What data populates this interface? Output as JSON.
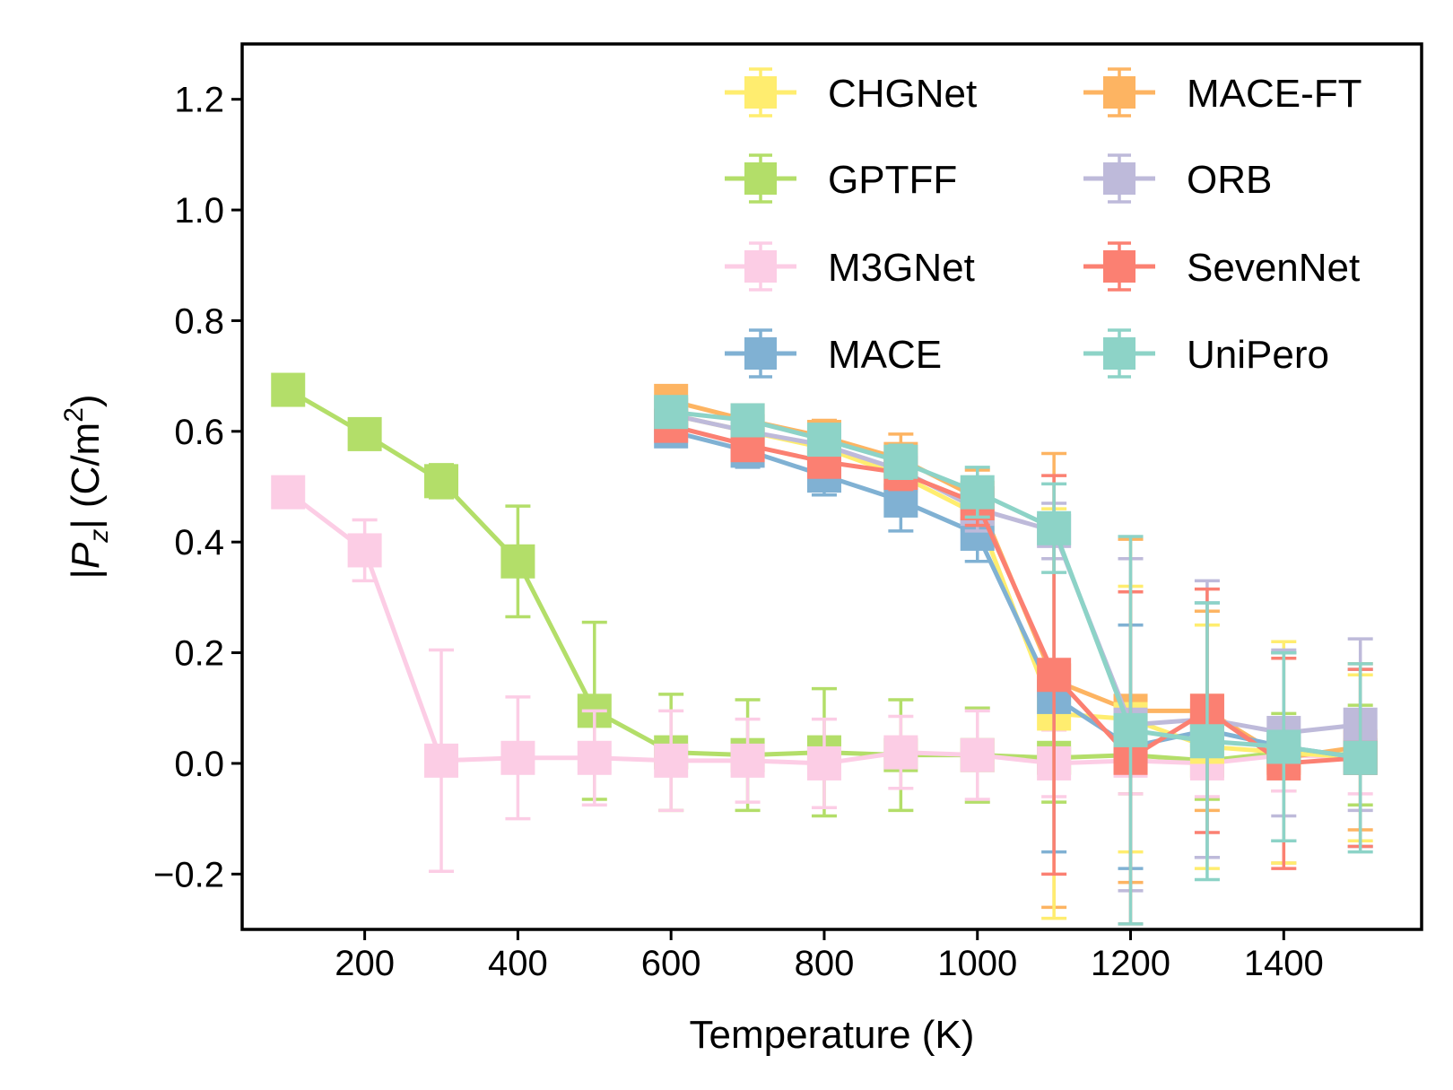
{
  "chart_data": {
    "type": "line",
    "title": "",
    "xlabel": "Temperature (K)",
    "ylabel": {
      "prefix": "|",
      "var": "P",
      "sub": "z",
      "mid": "| (C/m",
      "sup": "2",
      "suffix": ")"
    },
    "xlim": [
      40,
      1580
    ],
    "ylim": [
      -0.3,
      1.3
    ],
    "xticks": [
      200,
      400,
      600,
      800,
      1000,
      1200,
      1400
    ],
    "xtick_labels": [
      "200",
      "400",
      "600",
      "800",
      "1000",
      "1200",
      "1400"
    ],
    "yticks": [
      -0.2,
      0.0,
      0.2,
      0.4,
      0.6,
      0.8,
      1.0,
      1.2
    ],
    "ytick_labels": [
      "−0.2",
      "0.0",
      "0.2",
      "0.4",
      "0.6",
      "0.8",
      "1.0",
      "1.2"
    ],
    "legend": {
      "position": "top-right",
      "columns": 2
    },
    "series": [
      {
        "name": "CHGNet",
        "color": "#FFED6F",
        "x": [
          600,
          700,
          800,
          900,
          1000,
          1100,
          1200,
          1300,
          1400,
          1500
        ],
        "y": [
          0.63,
          0.6,
          0.57,
          0.52,
          0.45,
          0.09,
          0.08,
          0.03,
          0.02,
          0.01
        ],
        "err": [
          0.02,
          0.02,
          0.02,
          0.03,
          0.04,
          0.37,
          0.24,
          0.22,
          0.2,
          0.15
        ]
      },
      {
        "name": "GPTFF",
        "color": "#B3DE69",
        "x": [
          100,
          200,
          300,
          400,
          500,
          600,
          700,
          800,
          900,
          1000,
          1100,
          1200,
          1300,
          1400,
          1500
        ],
        "y": [
          0.675,
          0.595,
          0.51,
          0.365,
          0.095,
          0.02,
          0.015,
          0.02,
          0.015,
          0.015,
          0.01,
          0.015,
          0.005,
          0.02,
          0.015
        ],
        "err": [
          0.01,
          0.015,
          0.03,
          0.1,
          0.16,
          0.105,
          0.1,
          0.115,
          0.1,
          0.085,
          0.08,
          0.07,
          0.07,
          0.07,
          0.09
        ]
      },
      {
        "name": "M3GNet",
        "color": "#FCCDE5",
        "x": [
          100,
          200,
          300,
          400,
          500,
          600,
          700,
          800,
          900,
          1000,
          1100,
          1200,
          1300,
          1400,
          1500
        ],
        "y": [
          0.49,
          0.385,
          0.005,
          0.01,
          0.01,
          0.005,
          0.005,
          0.0,
          0.02,
          0.015,
          0.0,
          0.005,
          0.0,
          0.015,
          0.01
        ],
        "err": [
          0.015,
          0.055,
          0.2,
          0.11,
          0.085,
          0.09,
          0.075,
          0.08,
          0.065,
          0.08,
          0.06,
          0.06,
          0.06,
          0.065,
          0.065
        ]
      },
      {
        "name": "MACE",
        "color": "#80B1D3",
        "x": [
          600,
          700,
          800,
          900,
          1000,
          1100,
          1200,
          1300,
          1400,
          1500
        ],
        "y": [
          0.6,
          0.565,
          0.52,
          0.475,
          0.415,
          0.12,
          0.03,
          0.06,
          0.03,
          0.01
        ],
        "err": [
          0.015,
          0.03,
          0.035,
          0.055,
          0.05,
          0.28,
          0.22,
          0.23,
          0.17,
          0.16
        ]
      },
      {
        "name": "MACE-FT",
        "color": "#FDB462",
        "x": [
          600,
          700,
          800,
          900,
          1000,
          1100,
          1200,
          1300,
          1400,
          1500
        ],
        "y": [
          0.655,
          0.62,
          0.59,
          0.55,
          0.48,
          0.15,
          0.095,
          0.095,
          0.01,
          0.03
        ],
        "err": [
          0.025,
          0.02,
          0.03,
          0.045,
          0.05,
          0.41,
          0.31,
          0.18,
          0.19,
          0.15
        ]
      },
      {
        "name": "ORB",
        "color": "#BEBADA",
        "x": [
          600,
          700,
          800,
          900,
          1000,
          1100,
          1200,
          1300,
          1400,
          1500
        ],
        "y": [
          0.63,
          0.6,
          0.575,
          0.53,
          0.46,
          0.42,
          0.07,
          0.08,
          0.055,
          0.07
        ],
        "err": [
          0.02,
          0.02,
          0.02,
          0.03,
          0.04,
          0.05,
          0.3,
          0.25,
          0.15,
          0.155
        ]
      },
      {
        "name": "SevenNet",
        "color": "#FB8072",
        "x": [
          600,
          700,
          800,
          900,
          1000,
          1100,
          1200,
          1300,
          1400,
          1500
        ],
        "y": [
          0.61,
          0.575,
          0.545,
          0.525,
          0.47,
          0.16,
          0.01,
          0.095,
          0.0,
          0.01
        ],
        "err": [
          0.015,
          0.02,
          0.025,
          0.03,
          0.04,
          0.36,
          0.3,
          0.22,
          0.19,
          0.16
        ]
      },
      {
        "name": "UniPero",
        "color": "#8DD3C7",
        "x": [
          600,
          700,
          800,
          900,
          1000,
          1100,
          1200,
          1300,
          1400,
          1500
        ],
        "y": [
          0.635,
          0.62,
          0.585,
          0.545,
          0.49,
          0.425,
          0.06,
          0.04,
          0.03,
          0.01
        ],
        "err": [
          0.025,
          0.02,
          0.02,
          0.03,
          0.045,
          0.08,
          0.35,
          0.25,
          0.17,
          0.17
        ]
      }
    ]
  }
}
